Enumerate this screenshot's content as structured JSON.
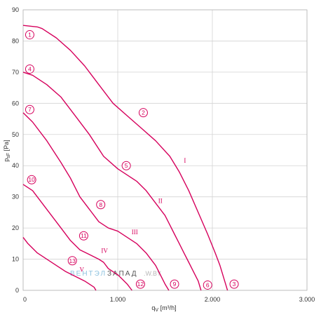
{
  "chart_data": {
    "type": "line",
    "xlabel": "q_V [m³/h]",
    "ylabel": "p_sF [Pa]",
    "xlim": [
      0,
      3000
    ],
    "ylim": [
      0,
      90
    ],
    "x_ticks": [
      "0",
      "1.000",
      "2.000",
      "3.000"
    ],
    "y_ticks": [
      "0",
      "10",
      "20",
      "30",
      "40",
      "50",
      "60",
      "70",
      "80",
      "90"
    ],
    "grid": true,
    "line_color": "#d6005c",
    "watermark": [
      "ВЕНТЭЛ",
      "ЗАПАД",
      ".W.BY"
    ],
    "series": [
      {
        "name": "I",
        "x": [
          0,
          150,
          200,
          350,
          500,
          650,
          800,
          950,
          1100,
          1250,
          1400,
          1550,
          1650,
          1750,
          1850,
          1950,
          2030,
          2080,
          2120,
          2140,
          2160
        ],
        "y": [
          85,
          84.5,
          84,
          81,
          77,
          72,
          66,
          60,
          56,
          52,
          48,
          43,
          38,
          32,
          25,
          18,
          12,
          8,
          4,
          2,
          0
        ]
      },
      {
        "name": "II",
        "x": [
          0,
          100,
          250,
          400,
          550,
          700,
          850,
          1000,
          1100,
          1200,
          1300,
          1400,
          1500,
          1550,
          1600,
          1650,
          1700,
          1750,
          1800,
          1850,
          1880
        ],
        "y": [
          70,
          69,
          66,
          62,
          56,
          50,
          43,
          39,
          37,
          35,
          32,
          28,
          24,
          21,
          18,
          15,
          12,
          9,
          6,
          3,
          0
        ]
      },
      {
        "name": "III",
        "x": [
          0,
          100,
          250,
          400,
          500,
          600,
          700,
          800,
          900,
          1000,
          1100,
          1200,
          1300,
          1400,
          1450,
          1500,
          1540
        ],
        "y": [
          57,
          54,
          48,
          41,
          36,
          30,
          26,
          22,
          20,
          19,
          17,
          15,
          12,
          8,
          5,
          2,
          0
        ]
      },
      {
        "name": "IV",
        "x": [
          0,
          100,
          200,
          300,
          400,
          500,
          600,
          700,
          800,
          850,
          900,
          1000,
          1050,
          1100,
          1150
        ],
        "y": [
          34,
          32,
          28,
          24,
          20,
          16,
          13,
          11.5,
          10,
          9,
          7,
          5,
          3.5,
          2,
          0
        ]
      },
      {
        "name": "V",
        "x": [
          0,
          50,
          150,
          250,
          350,
          450,
          550,
          650,
          700,
          750,
          770
        ],
        "y": [
          17,
          15,
          12,
          10,
          8,
          6,
          4.5,
          3,
          2,
          1,
          0
        ]
      }
    ],
    "markers": [
      {
        "label": "1",
        "x": 70,
        "y": 82
      },
      {
        "label": "2",
        "x": 1270,
        "y": 57
      },
      {
        "label": "3",
        "x": 2230,
        "y": 2
      },
      {
        "label": "4",
        "x": 70,
        "y": 71
      },
      {
        "label": "5",
        "x": 1090,
        "y": 40
      },
      {
        "label": "6",
        "x": 1950,
        "y": 1.7
      },
      {
        "label": "7",
        "x": 70,
        "y": 58
      },
      {
        "label": "8",
        "x": 820,
        "y": 27.5
      },
      {
        "label": "9",
        "x": 1600,
        "y": 2
      },
      {
        "label": "10",
        "x": 90,
        "y": 35.5
      },
      {
        "label": "11",
        "x": 640,
        "y": 17.5
      },
      {
        "label": "12",
        "x": 1240,
        "y": 2
      },
      {
        "label": "13",
        "x": 520,
        "y": 9.5
      }
    ],
    "curve_labels": [
      {
        "label": "I",
        "x": 1710,
        "y": 41
      },
      {
        "label": "II",
        "x": 1450,
        "y": 28
      },
      {
        "label": "III",
        "x": 1180,
        "y": 18
      },
      {
        "label": "IV",
        "x": 860,
        "y": 12
      },
      {
        "label": "V",
        "x": 620,
        "y": 6
      }
    ]
  }
}
